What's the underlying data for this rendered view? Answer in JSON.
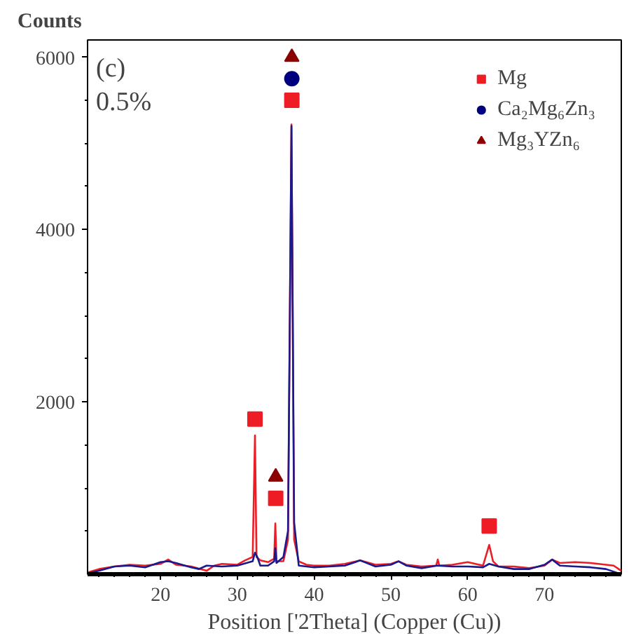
{
  "chart_data": {
    "type": "line",
    "ylabel": "Counts",
    "xlabel": "Position ['2Theta] (Copper (Cu))",
    "annotations": [
      "(c)",
      "0.5%"
    ],
    "xlim": [
      10.5,
      80
    ],
    "ylim": [
      0,
      6200
    ],
    "xticks": [
      20,
      30,
      40,
      50,
      60,
      70
    ],
    "yticks": [
      2000,
      4000,
      6000
    ],
    "grid": false,
    "legend": "top right",
    "series": [
      {
        "color": "#ee1c25",
        "x": [
          10.5,
          12,
          14,
          16,
          18,
          20,
          21,
          22,
          24,
          26,
          27,
          28,
          30,
          31,
          32,
          32.3,
          32.5,
          33,
          34,
          34.8,
          34.95,
          35.1,
          36,
          36.6,
          37.05,
          37.4,
          38,
          39,
          40,
          42,
          44,
          46,
          48,
          50,
          51,
          52,
          54,
          55.9,
          56.1,
          56.3,
          58,
          60,
          62,
          62.8,
          63.3,
          64,
          66,
          68,
          70,
          71,
          72,
          74,
          76,
          78,
          79,
          80
        ],
        "values": [
          20,
          60,
          90,
          110,
          100,
          120,
          170,
          110,
          90,
          40,
          100,
          120,
          110,
          160,
          200,
          1610,
          200,
          160,
          140,
          180,
          590,
          150,
          150,
          400,
          5220,
          400,
          150,
          110,
          100,
          100,
          120,
          160,
          110,
          120,
          150,
          110,
          90,
          100,
          170,
          100,
          110,
          140,
          100,
          340,
          150,
          90,
          90,
          70,
          100,
          170,
          130,
          140,
          130,
          110,
          100,
          40
        ]
      },
      {
        "color": "#1a1a8c",
        "x": [
          10.5,
          12,
          14,
          16,
          18,
          20,
          21,
          22,
          24,
          25,
          26,
          28,
          30,
          32,
          32.3,
          32.6,
          33,
          34,
          34.8,
          34.95,
          35.1,
          36,
          36.6,
          37.05,
          37.4,
          38,
          40,
          42,
          44,
          46,
          48,
          50,
          51,
          52,
          54,
          56,
          58,
          60,
          62,
          62.8,
          64,
          66,
          68,
          70,
          71,
          72,
          74,
          76,
          78,
          80
        ],
        "values": [
          10,
          40,
          90,
          100,
          80,
          140,
          150,
          130,
          80,
          60,
          100,
          90,
          100,
          150,
          250,
          200,
          100,
          100,
          150,
          300,
          130,
          200,
          500,
          5200,
          600,
          100,
          80,
          90,
          100,
          160,
          90,
          110,
          150,
          100,
          70,
          100,
          90,
          90,
          80,
          120,
          90,
          60,
          60,
          110,
          170,
          100,
          90,
          80,
          60,
          0
        ]
      },
      {
        "type": "scatter",
        "name": "Mg",
        "marker": "square",
        "color": "#ee1c25",
        "x": [
          32.3,
          35.0,
          37.1,
          62.8
        ],
        "values": [
          1800,
          880,
          5500,
          560
        ]
      },
      {
        "type": "scatter",
        "name": "Ca₂Mg₆Zn₃",
        "marker": "circle",
        "color": "#00007f",
        "x": [
          37.1
        ],
        "values": [
          5750
        ]
      },
      {
        "type": "scatter",
        "name": "Mg₃YZn₆",
        "marker": "triangle",
        "color": "#8b0000",
        "x": [
          35.0,
          37.1
        ],
        "values": [
          1130,
          6000
        ]
      }
    ]
  }
}
